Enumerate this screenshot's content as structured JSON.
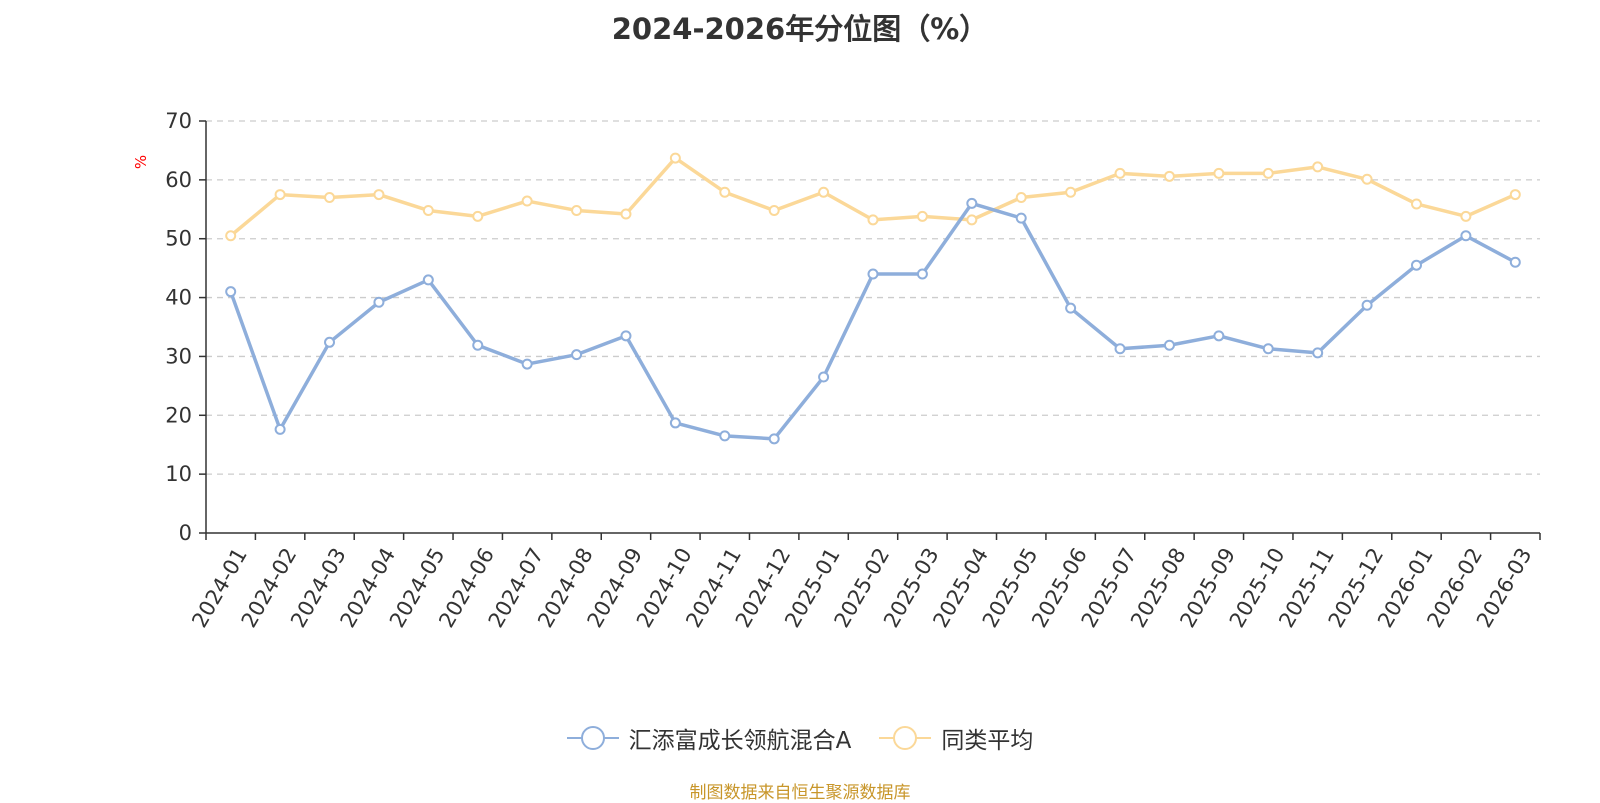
{
  "chart_data": {
    "type": "line",
    "title": "2024-2026年分位图（%）",
    "ylabel": "%",
    "ylim": [
      0,
      70
    ],
    "yticks": [
      "0",
      "10",
      "20",
      "30",
      "40",
      "50",
      "60",
      "70"
    ],
    "grid": true,
    "legend_position": "bottom",
    "categories": [
      "2024-01",
      "2024-02",
      "2024-03",
      "2024-04",
      "2024-05",
      "2024-06",
      "2024-07",
      "2024-08",
      "2024-09",
      "2024-10",
      "2024-11",
      "2024-12",
      "2025-01",
      "2025-02",
      "2025-03",
      "2025-04",
      "2025-05",
      "2025-06",
      "2025-07",
      "2025-08",
      "2025-09",
      "2025-10",
      "2025-11",
      "2025-12",
      "2026-01",
      "2026-02",
      "2026-03"
    ],
    "series": [
      {
        "name": "汇添富成长领航混合A",
        "color": "#8eaedb",
        "values": [
          41.0,
          17.6,
          32.4,
          39.2,
          43.0,
          31.9,
          28.7,
          30.3,
          33.5,
          18.7,
          16.5,
          16.0,
          26.5,
          44.0,
          44.0,
          56.0,
          53.5,
          38.2,
          31.3,
          31.9,
          33.5,
          31.3,
          30.6,
          38.7,
          45.5,
          50.5,
          46.0
        ]
      },
      {
        "name": "同类平均",
        "color": "#fbd898",
        "values": [
          50.5,
          57.5,
          57.0,
          57.5,
          54.8,
          53.8,
          56.4,
          54.8,
          54.2,
          63.7,
          57.9,
          54.8,
          57.9,
          53.2,
          53.8,
          53.2,
          57.0,
          57.9,
          61.1,
          60.6,
          61.1,
          61.1,
          62.2,
          60.1,
          55.9,
          53.8,
          57.5
        ]
      }
    ]
  },
  "footer": {
    "source": "制图数据来自恒生聚源数据库"
  }
}
